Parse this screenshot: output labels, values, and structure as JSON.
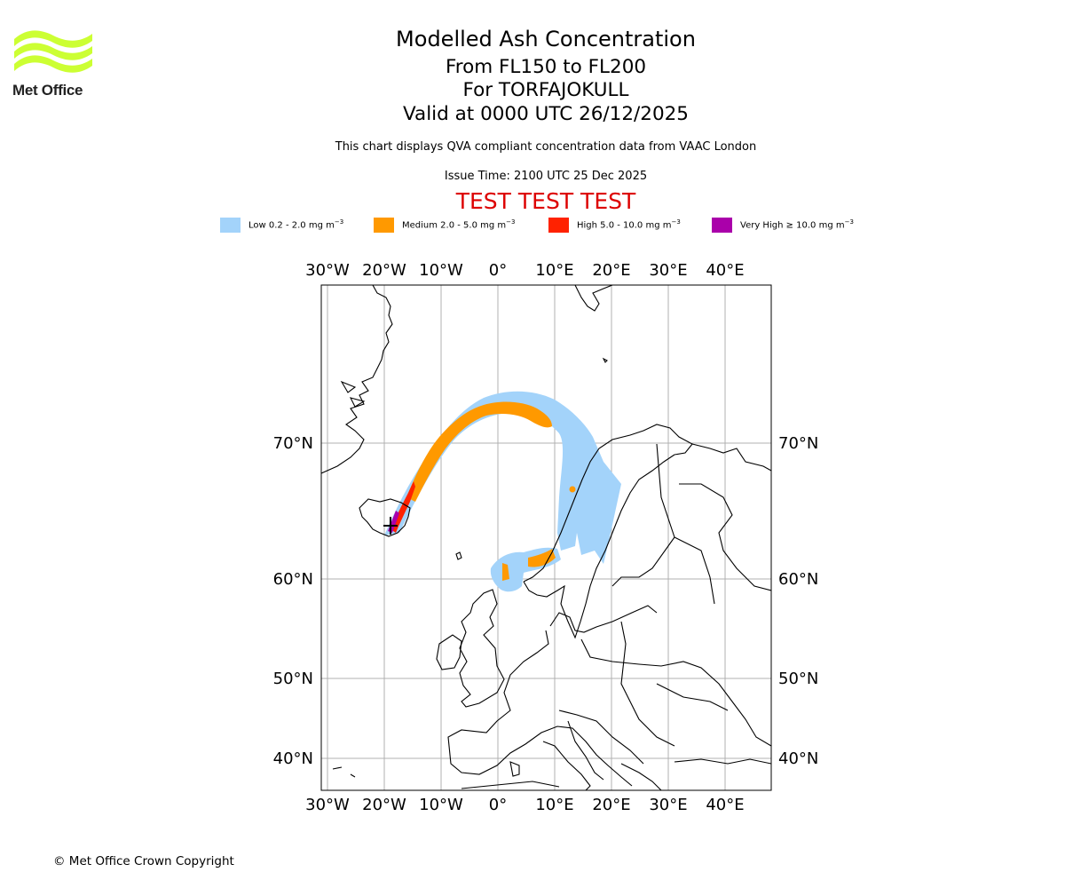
{
  "branding": {
    "logo_text": "Met Office",
    "logo_color": "#ccff33",
    "copyright": "© Met Office Crown Copyright"
  },
  "header": {
    "title": "Modelled Ash Concentration",
    "levels": "From FL150 to FL200",
    "volcano": "For TORFAJOKULL",
    "valid": "Valid at 0000 UTC 26/12/2025",
    "description": "This chart displays QVA compliant concentration data from VAAC London",
    "issue_time": "Issue Time: 2100 UTC 25 Dec 2025",
    "test_banner": "TEST TEST TEST",
    "test_color": "#dd0000"
  },
  "legend": [
    {
      "label": "Low 0.2 - 2.0 mg m",
      "exp": "−3",
      "color": "#a3d3fa"
    },
    {
      "label": "Medium 2.0 - 5.0 mg m",
      "exp": "−3",
      "color": "#ff9900"
    },
    {
      "label": "High 5.0 - 10.0 mg m",
      "exp": "−3",
      "color": "#ff2200"
    },
    {
      "label": "Very High  ≥  10.0 mg m",
      "exp": "−3",
      "color": "#aa00aa"
    }
  ],
  "map": {
    "lon_labels": [
      "30°W",
      "20°W",
      "10°W",
      "0°",
      "10°E",
      "20°E",
      "30°E",
      "40°E"
    ],
    "lat_labels": [
      "70°N",
      "60°N",
      "50°N",
      "40°N"
    ],
    "source_marker": "volcano-source"
  }
}
